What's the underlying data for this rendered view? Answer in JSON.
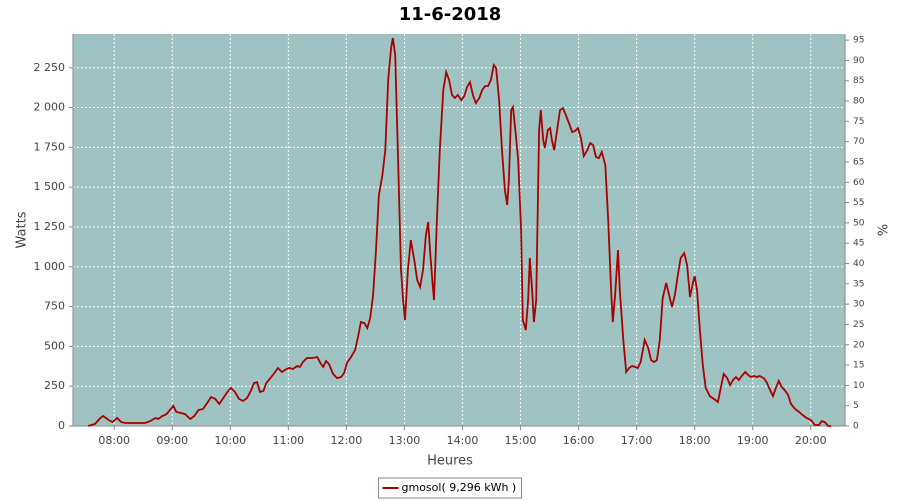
{
  "chart_data": {
    "type": "line",
    "title": "11-6-2018",
    "xlabel": "Heures",
    "ylabel": "Watts",
    "y2label": "%",
    "x": [
      7.55,
      7.67,
      7.76,
      7.81,
      7.9,
      7.97,
      8.05,
      8.12,
      8.19,
      8.36,
      8.53,
      8.62,
      8.71,
      8.76,
      8.83,
      8.9,
      8.96,
      9.02,
      9.07,
      9.14,
      9.22,
      9.31,
      9.38,
      9.45,
      9.53,
      9.6,
      9.67,
      9.74,
      9.81,
      9.88,
      9.95,
      10.01,
      10.08,
      10.15,
      10.22,
      10.29,
      10.36,
      10.41,
      10.46,
      10.51,
      10.57,
      10.62,
      10.69,
      10.76,
      10.82,
      10.89,
      10.94,
      11.01,
      11.08,
      11.15,
      11.2,
      11.25,
      11.32,
      11.41,
      11.5,
      11.55,
      11.6,
      11.65,
      11.7,
      11.77,
      11.84,
      11.91,
      11.96,
      12.01,
      12.08,
      12.15,
      12.2,
      12.25,
      12.31,
      12.36,
      12.41,
      12.46,
      12.51,
      12.56,
      12.62,
      12.67,
      12.72,
      12.77,
      12.8,
      12.84,
      12.89,
      12.94,
      12.98,
      13.01,
      13.06,
      13.11,
      13.17,
      13.22,
      13.27,
      13.32,
      13.37,
      13.41,
      13.44,
      13.48,
      13.51,
      13.56,
      13.61,
      13.67,
      13.72,
      13.77,
      13.82,
      13.87,
      13.92,
      13.98,
      14.03,
      14.08,
      14.13,
      14.18,
      14.23,
      14.29,
      14.34,
      14.39,
      14.44,
      14.49,
      14.54,
      14.58,
      14.63,
      14.68,
      14.73,
      14.77,
      14.8,
      14.84,
      14.87,
      14.91,
      14.96,
      15.01,
      15.04,
      15.09,
      15.13,
      15.16,
      15.2,
      15.23,
      15.27,
      15.32,
      15.35,
      15.39,
      15.42,
      15.47,
      15.51,
      15.54,
      15.58,
      15.63,
      15.68,
      15.73,
      15.78,
      15.84,
      15.89,
      15.94,
      15.99,
      16.04,
      16.09,
      16.15,
      16.2,
      16.25,
      16.3,
      16.35,
      16.4,
      16.46,
      16.51,
      16.56,
      16.59,
      16.63,
      16.68,
      16.71,
      16.77,
      16.82,
      16.87,
      16.92,
      16.97,
      17.02,
      17.07,
      17.14,
      17.2,
      17.25,
      17.3,
      17.35,
      17.4,
      17.45,
      17.51,
      17.56,
      17.61,
      17.66,
      17.71,
      17.76,
      17.82,
      17.87,
      17.92,
      17.97,
      18.0,
      18.04,
      18.09,
      18.14,
      18.19,
      18.26,
      18.33,
      18.4,
      18.45,
      18.5,
      18.56,
      18.61,
      18.66,
      18.71,
      18.76,
      18.81,
      18.87,
      18.92,
      18.97,
      19.02,
      19.07,
      19.12,
      19.19,
      19.24,
      19.3,
      19.35,
      19.4,
      19.45,
      19.5,
      19.55,
      19.61,
      19.66,
      19.73,
      19.8,
      19.86,
      19.93,
      20.0,
      20.07,
      20.14,
      20.19,
      20.24,
      20.3,
      20.35
    ],
    "series": [
      {
        "name": "gmosol( 9,296 kWh )",
        "color": "#aa0000",
        "values": [
          0,
          13,
          50,
          63,
          38,
          25,
          50,
          25,
          19,
          19,
          19,
          31,
          50,
          44,
          63,
          75,
          100,
          126,
          88,
          82,
          75,
          44,
          63,
          100,
          107,
          144,
          182,
          170,
          138,
          176,
          214,
          239,
          214,
          170,
          157,
          176,
          226,
          270,
          276,
          214,
          220,
          270,
          301,
          333,
          364,
          339,
          352,
          364,
          358,
          377,
          371,
          402,
          427,
          427,
          433,
          396,
          371,
          408,
          389,
          327,
          301,
          308,
          333,
          396,
          433,
          477,
          559,
          653,
          647,
          615,
          678,
          823,
          1105,
          1451,
          1576,
          1733,
          2173,
          2374,
          2437,
          2330,
          1670,
          980,
          779,
          666,
          980,
          1168,
          1042,
          917,
          873,
          980,
          1199,
          1281,
          1105,
          917,
          791,
          1294,
          1733,
          2110,
          2223,
          2173,
          2079,
          2060,
          2079,
          2047,
          2072,
          2129,
          2160,
          2079,
          2028,
          2060,
          2110,
          2135,
          2135,
          2173,
          2267,
          2248,
          2047,
          1733,
          1482,
          1388,
          1545,
          1984,
          2003,
          1859,
          1670,
          1231,
          666,
          603,
          791,
          1055,
          854,
          653,
          791,
          1859,
          1984,
          1796,
          1746,
          1859,
          1871,
          1796,
          1733,
          1859,
          1984,
          1997,
          1953,
          1897,
          1846,
          1853,
          1871,
          1809,
          1696,
          1733,
          1777,
          1765,
          1689,
          1683,
          1721,
          1639,
          1294,
          854,
          653,
          823,
          1105,
          854,
          540,
          339,
          364,
          377,
          371,
          364,
          402,
          540,
          490,
          414,
          402,
          414,
          540,
          804,
          898,
          823,
          747,
          823,
          948,
          1055,
          1086,
          1011,
          810,
          898,
          942,
          854,
          603,
          383,
          239,
          188,
          170,
          151,
          239,
          327,
          301,
          257,
          289,
          308,
          289,
          314,
          339,
          320,
          308,
          314,
          308,
          314,
          301,
          276,
          226,
          188,
          239,
          283,
          245,
          226,
          195,
          138,
          107,
          88,
          69,
          50,
          38,
          6,
          6,
          31,
          25,
          0,
          0
        ]
      }
    ],
    "xlim": [
      7.29,
      20.59
    ],
    "xticks": [
      {
        "value": 8,
        "label": "08:00"
      },
      {
        "value": 9,
        "label": "09:00"
      },
      {
        "value": 10,
        "label": "10:00"
      },
      {
        "value": 11,
        "label": "11:00"
      },
      {
        "value": 12,
        "label": "12:00"
      },
      {
        "value": 13,
        "label": "13:00"
      },
      {
        "value": 14,
        "label": "14:00"
      },
      {
        "value": 15,
        "label": "15:00"
      },
      {
        "value": 16,
        "label": "16:00"
      },
      {
        "value": 17,
        "label": "17:00"
      },
      {
        "value": 18,
        "label": "18:00"
      },
      {
        "value": 19,
        "label": "19:00"
      },
      {
        "value": 20,
        "label": "20:00"
      }
    ],
    "ylim": [
      0,
      2462
    ],
    "yticks": [
      0,
      250,
      500,
      750,
      {
        "value": 1000,
        "label": "1 000"
      },
      {
        "value": 1250,
        "label": "1 250"
      },
      {
        "value": 1500,
        "label": "1 500"
      },
      {
        "value": 1750,
        "label": "1 750"
      },
      {
        "value": 2000,
        "label": "2 000"
      },
      {
        "value": 2250,
        "label": "2 250"
      }
    ],
    "y2lim": [
      0,
      96.5
    ],
    "y2ticks": [
      0,
      5,
      10,
      15,
      20,
      25,
      30,
      35,
      40,
      45,
      50,
      55,
      60,
      65,
      70,
      75,
      80,
      85,
      90,
      95
    ],
    "grid": true,
    "legend": "bottom",
    "plot_background": "#9fc3c3"
  }
}
